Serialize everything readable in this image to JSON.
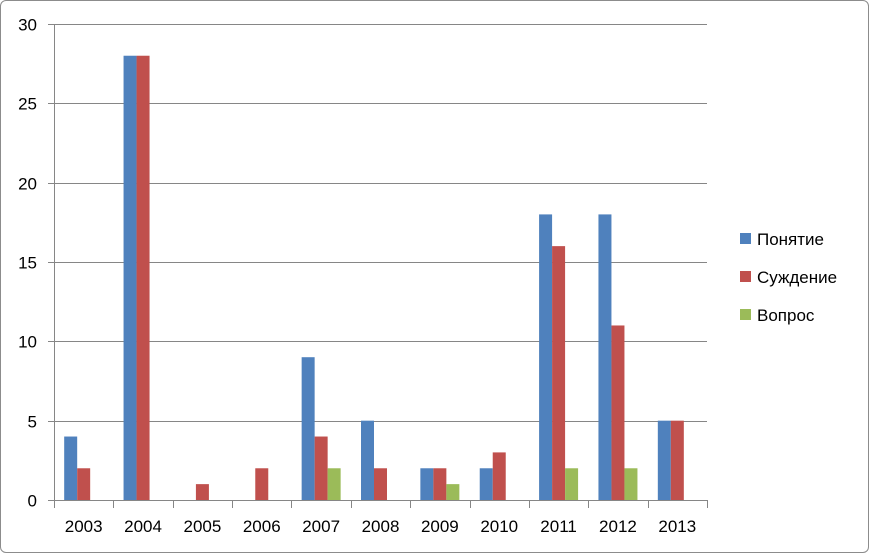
{
  "chart_data": {
    "type": "bar",
    "title": "",
    "xlabel": "",
    "ylabel": "",
    "ylim": [
      0,
      30
    ],
    "yticks": [
      0,
      5,
      10,
      15,
      20,
      25,
      30
    ],
    "grid": true,
    "legend_position": "right",
    "categories": [
      "2003",
      "2004",
      "2005",
      "2006",
      "2007",
      "2008",
      "2009",
      "2010",
      "2011",
      "2012",
      "2013"
    ],
    "series": [
      {
        "name": "Понятие",
        "color": "#4F81BD",
        "values": [
          4,
          28,
          0,
          0,
          9,
          5,
          2,
          2,
          18,
          18,
          5
        ]
      },
      {
        "name": "Суждение",
        "color": "#C0504D",
        "values": [
          2,
          28,
          1,
          2,
          4,
          2,
          2,
          3,
          16,
          11,
          5
        ]
      },
      {
        "name": "Вопрос",
        "color": "#9BBB59",
        "values": [
          0,
          0,
          0,
          0,
          2,
          0,
          1,
          0,
          2,
          2,
          0
        ]
      }
    ]
  }
}
